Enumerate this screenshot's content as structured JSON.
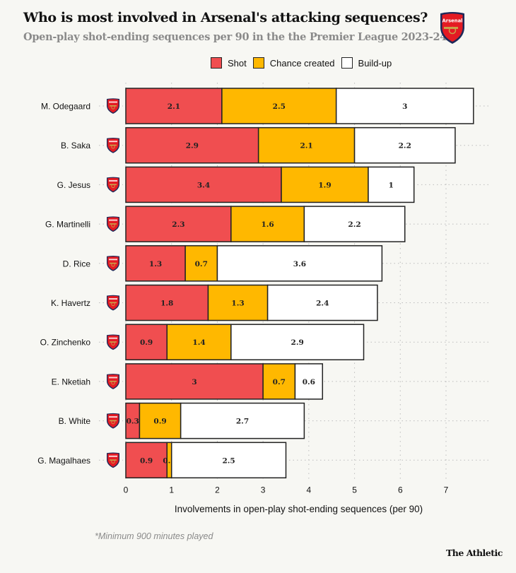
{
  "header": {
    "title": "Who is most involved in Arsenal's attacking sequences?",
    "subtitle": "Open-play shot-ending sequences per 90 in the the Premier League 2023-24",
    "crest_label": "Arsenal"
  },
  "colors": {
    "shot": "#f04e50",
    "chance_created": "#ffb800",
    "build_up": "#ffffff",
    "crest_red": "#e41b23",
    "crest_navy": "#1e2a5a",
    "crest_gold": "#c8a24a"
  },
  "footer": {
    "footnote": "*Minimum 900 minutes played",
    "brand": "The Athletic"
  },
  "chart_data": {
    "type": "bar",
    "orientation": "horizontal",
    "stacked": true,
    "title": "Who is most involved in Arsenal's attacking sequences?",
    "subtitle": "Open-play shot-ending sequences per 90 in the the Premier League 2023-24",
    "xlabel": "Involvements in open-play shot-ending sequences (per 90)",
    "ylabel": "",
    "xlim": [
      0,
      7
    ],
    "xticks": [
      0,
      1,
      2,
      3,
      4,
      5,
      6,
      7
    ],
    "grid": true,
    "legend_position": "top",
    "categories": [
      "M. Odegaard",
      "B. Saka",
      "G. Jesus",
      "G. Martinelli",
      "D. Rice",
      "K. Havertz",
      "O. Zinchenko",
      "E. Nketiah",
      "B. White",
      "G. Magalhaes"
    ],
    "series": [
      {
        "name": "Shot",
        "key": "shot",
        "values": [
          2.1,
          2.9,
          3.4,
          2.3,
          1.3,
          1.8,
          0.9,
          3,
          0.3,
          0.9
        ]
      },
      {
        "name": "Chance created",
        "key": "chance_created",
        "values": [
          2.5,
          2.1,
          1.9,
          1.6,
          0.7,
          1.3,
          1.4,
          0.7,
          0.9,
          0.1
        ]
      },
      {
        "name": "Build-up",
        "key": "build_up",
        "values": [
          3,
          2.2,
          1,
          2.2,
          3.6,
          2.4,
          2.9,
          0.6,
          2.7,
          2.5
        ]
      }
    ],
    "footnote": "*Minimum 900 minutes played"
  }
}
